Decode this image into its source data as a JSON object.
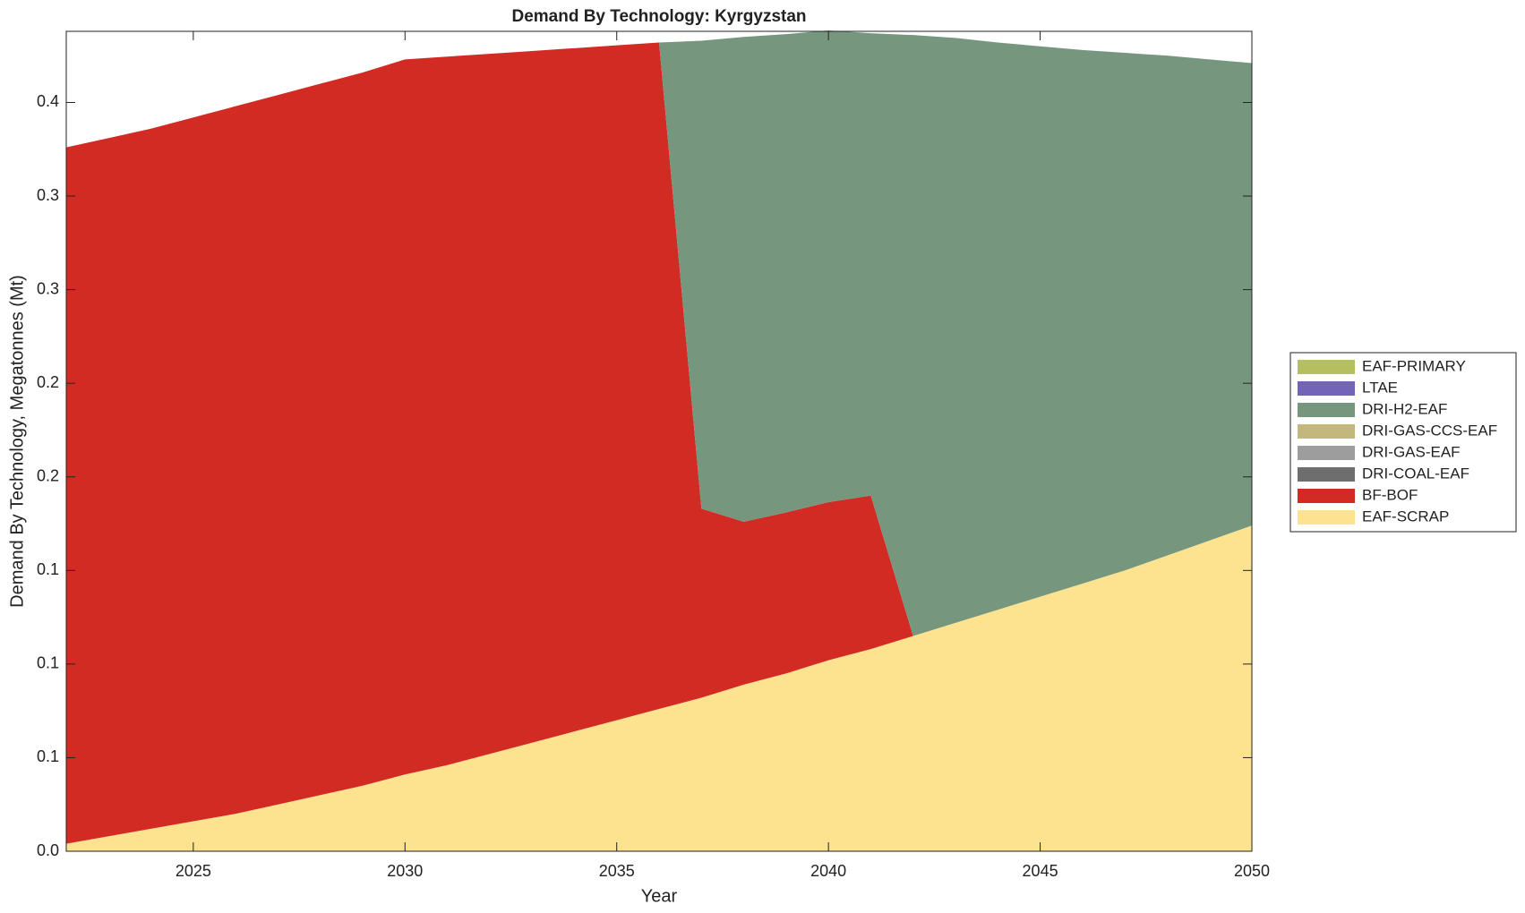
{
  "chart_data": {
    "type": "stacked_area",
    "title": "Demand By Technology: Kyrgyzstan",
    "xlabel": "Year",
    "ylabel": "Demand By Technology, Megatonnes (Mt)",
    "x": [
      2022,
      2023,
      2024,
      2025,
      2026,
      2027,
      2028,
      2029,
      2030,
      2031,
      2032,
      2033,
      2034,
      2035,
      2036,
      2037,
      2038,
      2039,
      2040,
      2041,
      2042,
      2043,
      2044,
      2045,
      2046,
      2047,
      2048,
      2049,
      2050
    ],
    "xlim": [
      2022,
      2050
    ],
    "xticks": [
      2025,
      2030,
      2035,
      2040,
      2045,
      2050
    ],
    "ylim": [
      0,
      0.438
    ],
    "yticks": [
      {
        "value": 0,
        "label": "0.0"
      },
      {
        "value": 0.05,
        "label": "0.1"
      },
      {
        "value": 0.1,
        "label": "0.1"
      },
      {
        "value": 0.15,
        "label": "0.1"
      },
      {
        "value": 0.2,
        "label": "0.2"
      },
      {
        "value": 0.25,
        "label": "0.2"
      },
      {
        "value": 0.3,
        "label": "0.3"
      },
      {
        "value": 0.35,
        "label": "0.3"
      },
      {
        "value": 0.4,
        "label": "0.4"
      }
    ],
    "legend": "outside-right",
    "series": [
      {
        "name": "EAF-SCRAP",
        "color": "#fde28f",
        "values": [
          0.004,
          0.008,
          0.012,
          0.016,
          0.02,
          0.025,
          0.03,
          0.035,
          0.041,
          0.046,
          0.052,
          0.058,
          0.064,
          0.07,
          0.076,
          0.082,
          0.089,
          0.095,
          0.102,
          0.108,
          0.115,
          0.122,
          0.129,
          0.136,
          0.143,
          0.15,
          0.158,
          0.166,
          0.174
        ]
      },
      {
        "name": "BF-BOF",
        "color": "#d22b24",
        "values": [
          0.372,
          0.373,
          0.374,
          0.376,
          0.378,
          0.379,
          0.38,
          0.381,
          0.382,
          0.3785,
          0.374,
          0.3695,
          0.365,
          0.3605,
          0.356,
          0.101,
          0.087,
          0.086,
          0.0845,
          0.082,
          0,
          0,
          0,
          0,
          0,
          0,
          0,
          0,
          0
        ]
      },
      {
        "name": "DRI-COAL-EAF",
        "color": "#6e6e6e",
        "values": [
          0,
          0,
          0,
          0,
          0,
          0,
          0,
          0,
          0,
          0,
          0,
          0,
          0,
          0,
          0,
          0,
          0,
          0,
          0,
          0,
          0,
          0,
          0,
          0,
          0,
          0,
          0,
          0,
          0
        ]
      },
      {
        "name": "DRI-GAS-EAF",
        "color": "#9d9d9d",
        "values": [
          0,
          0,
          0,
          0,
          0,
          0,
          0,
          0,
          0,
          0,
          0,
          0,
          0,
          0,
          0,
          0,
          0,
          0,
          0,
          0,
          0,
          0,
          0,
          0,
          0,
          0,
          0,
          0,
          0
        ]
      },
      {
        "name": "DRI-GAS-CCS-EAF",
        "color": "#c2b87c",
        "values": [
          0,
          0,
          0,
          0,
          0,
          0,
          0,
          0,
          0,
          0,
          0,
          0,
          0,
          0,
          0,
          0,
          0,
          0,
          0,
          0,
          0,
          0,
          0,
          0,
          0,
          0,
          0,
          0,
          0
        ]
      },
      {
        "name": "DRI-H2-EAF",
        "color": "#76977e",
        "values": [
          0,
          0,
          0,
          0,
          0,
          0,
          0,
          0,
          0,
          0,
          0,
          0,
          0,
          0,
          0,
          0.25,
          0.259,
          0.2555,
          0.252,
          0.247,
          0.321,
          0.3125,
          0.303,
          0.294,
          0.285,
          0.2765,
          0.267,
          0.257,
          0.247
        ]
      },
      {
        "name": "LTAE",
        "color": "#7364b8",
        "values": [
          0,
          0,
          0,
          0,
          0,
          0,
          0,
          0,
          0,
          0,
          0,
          0,
          0,
          0,
          0,
          0,
          0,
          0,
          0,
          0,
          0,
          0,
          0,
          0,
          0,
          0,
          0,
          0,
          0
        ]
      },
      {
        "name": "EAF-PRIMARY",
        "color": "#b5bf5f",
        "values": [
          0,
          0,
          0,
          0,
          0,
          0,
          0,
          0,
          0,
          0,
          0,
          0,
          0,
          0,
          0,
          0,
          0,
          0,
          0,
          0,
          0,
          0,
          0,
          0,
          0,
          0,
          0,
          0,
          0
        ]
      }
    ]
  }
}
